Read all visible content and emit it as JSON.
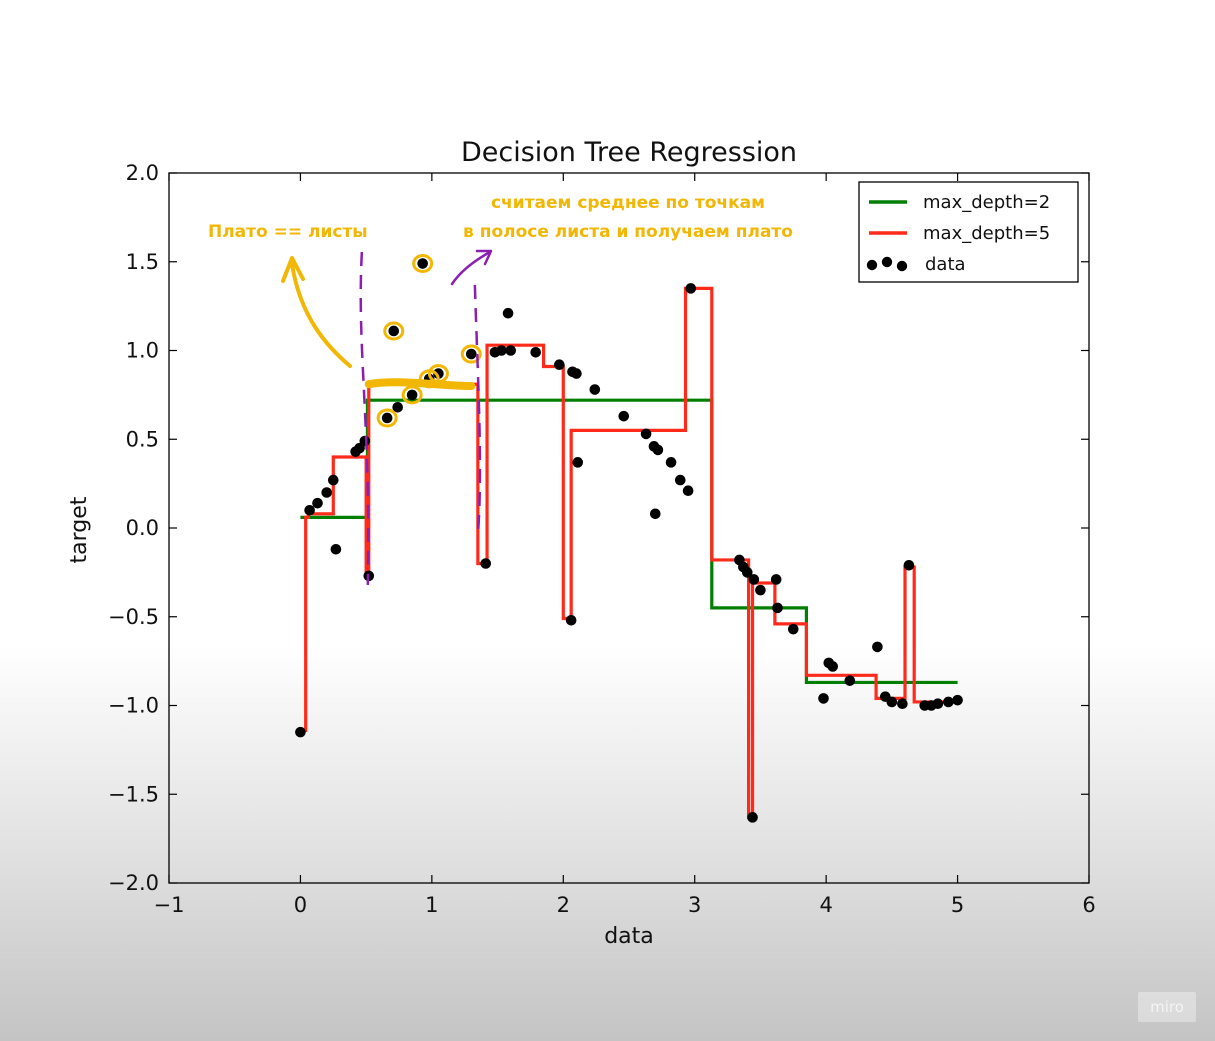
{
  "chart_data": {
    "type": "line",
    "title": "Decision Tree Regression",
    "xlabel": "data",
    "ylabel": "target",
    "xlim": [
      -1,
      6
    ],
    "ylim": [
      -2.0,
      2.0
    ],
    "xticks": [
      -1,
      0,
      1,
      2,
      3,
      4,
      5,
      6
    ],
    "yticks": [
      -2.0,
      -1.5,
      -1.0,
      -0.5,
      0.0,
      0.5,
      1.0,
      1.5,
      2.0
    ],
    "xtick_labels": [
      "−1",
      "0",
      "1",
      "2",
      "3",
      "4",
      "5",
      "6"
    ],
    "ytick_labels": [
      "−2.0",
      "−1.5",
      "−1.0",
      "−0.5",
      "0.0",
      "0.5",
      "1.0",
      "1.5",
      "2.0"
    ],
    "grid": false,
    "legend_position": "top-right",
    "series": [
      {
        "name": "max_depth=2",
        "kind": "step",
        "color": "#007f00",
        "x": [
          0.0,
          0.51,
          0.51,
          3.13,
          3.13,
          3.85,
          3.85,
          5.0
        ],
        "y": [
          0.06,
          0.06,
          0.72,
          0.72,
          -0.45,
          -0.45,
          -0.87,
          -0.87
        ]
      },
      {
        "name": "max_depth=5",
        "kind": "step",
        "color": "#ff2a1a",
        "x": [
          0.0,
          0.04,
          0.04,
          0.06,
          0.06,
          0.25,
          0.25,
          0.5,
          0.5,
          0.52,
          0.52,
          1.35,
          1.35,
          1.42,
          1.42,
          1.85,
          1.85,
          2.0,
          2.0,
          2.06,
          2.06,
          2.93,
          2.93,
          3.13,
          3.13,
          3.41,
          3.41,
          3.44,
          3.44,
          3.61,
          3.61,
          3.85,
          3.85,
          4.38,
          4.38,
          4.6,
          4.6,
          4.67,
          4.67,
          5.0
        ],
        "y": [
          -1.14,
          -1.14,
          0.06,
          0.06,
          0.08,
          0.08,
          0.4,
          0.4,
          -0.26,
          -0.26,
          0.81,
          0.81,
          -0.2,
          -0.2,
          1.03,
          1.03,
          0.91,
          0.91,
          -0.51,
          -0.51,
          0.55,
          0.55,
          1.35,
          1.35,
          -0.18,
          -0.18,
          -1.63,
          -1.63,
          -0.31,
          -0.31,
          -0.54,
          -0.54,
          -0.83,
          -0.83,
          -0.96,
          -0.96,
          -0.22,
          -0.22,
          -0.98,
          -0.98
        ]
      },
      {
        "name": "data",
        "kind": "scatter",
        "color": "#000000",
        "points": [
          [
            0.0,
            -1.15
          ],
          [
            0.07,
            0.1
          ],
          [
            0.13,
            0.14
          ],
          [
            0.2,
            0.2
          ],
          [
            0.25,
            0.27
          ],
          [
            0.27,
            -0.12
          ],
          [
            0.42,
            0.43
          ],
          [
            0.45,
            0.45
          ],
          [
            0.49,
            0.49
          ],
          [
            0.52,
            -0.27
          ],
          [
            0.66,
            0.62
          ],
          [
            0.71,
            1.11
          ],
          [
            0.74,
            0.68
          ],
          [
            0.85,
            0.75
          ],
          [
            0.93,
            1.49
          ],
          [
            0.98,
            0.84
          ],
          [
            1.05,
            0.87
          ],
          [
            1.3,
            0.98
          ],
          [
            1.41,
            -0.2
          ],
          [
            1.48,
            0.99
          ],
          [
            1.53,
            1.0
          ],
          [
            1.58,
            1.21
          ],
          [
            1.6,
            1.0
          ],
          [
            1.79,
            0.99
          ],
          [
            1.97,
            0.92
          ],
          [
            2.06,
            -0.52
          ],
          [
            2.07,
            0.88
          ],
          [
            2.1,
            0.87
          ],
          [
            2.11,
            0.37
          ],
          [
            2.24,
            0.78
          ],
          [
            2.46,
            0.63
          ],
          [
            2.63,
            0.53
          ],
          [
            2.69,
            0.46
          ],
          [
            2.7,
            0.08
          ],
          [
            2.72,
            0.44
          ],
          [
            2.82,
            0.37
          ],
          [
            2.89,
            0.27
          ],
          [
            2.95,
            0.21
          ],
          [
            2.97,
            1.35
          ],
          [
            3.34,
            -0.18
          ],
          [
            3.37,
            -0.22
          ],
          [
            3.4,
            -0.25
          ],
          [
            3.44,
            -1.63
          ],
          [
            3.45,
            -0.29
          ],
          [
            3.5,
            -0.35
          ],
          [
            3.62,
            -0.29
          ],
          [
            3.63,
            -0.45
          ],
          [
            3.75,
            -0.57
          ],
          [
            3.98,
            -0.96
          ],
          [
            4.02,
            -0.76
          ],
          [
            4.05,
            -0.78
          ],
          [
            4.18,
            -0.86
          ],
          [
            4.39,
            -0.67
          ],
          [
            4.45,
            -0.95
          ],
          [
            4.5,
            -0.98
          ],
          [
            4.58,
            -0.99
          ],
          [
            4.63,
            -0.21
          ],
          [
            4.75,
            -1.0
          ],
          [
            4.8,
            -1.0
          ],
          [
            4.85,
            -0.99
          ],
          [
            4.93,
            -0.98
          ],
          [
            5.0,
            -0.97
          ]
        ]
      }
    ],
    "annotations": {
      "left_note": "Плато == листы",
      "right_note_line1": "считаем среднее по точкам",
      "right_note_line2": "в полосе листа и получаем плато",
      "yellow_color": "#f2b705",
      "purple_color": "#8a1fb0",
      "leaf_band_x": [
        0.49,
        1.35
      ],
      "highlighted_points": [
        [
          0.66,
          0.62
        ],
        [
          0.71,
          1.11
        ],
        [
          0.85,
          0.75
        ],
        [
          0.93,
          1.49
        ],
        [
          0.98,
          0.84
        ],
        [
          1.05,
          0.87
        ],
        [
          1.3,
          0.98
        ]
      ]
    }
  },
  "watermark": "miro"
}
